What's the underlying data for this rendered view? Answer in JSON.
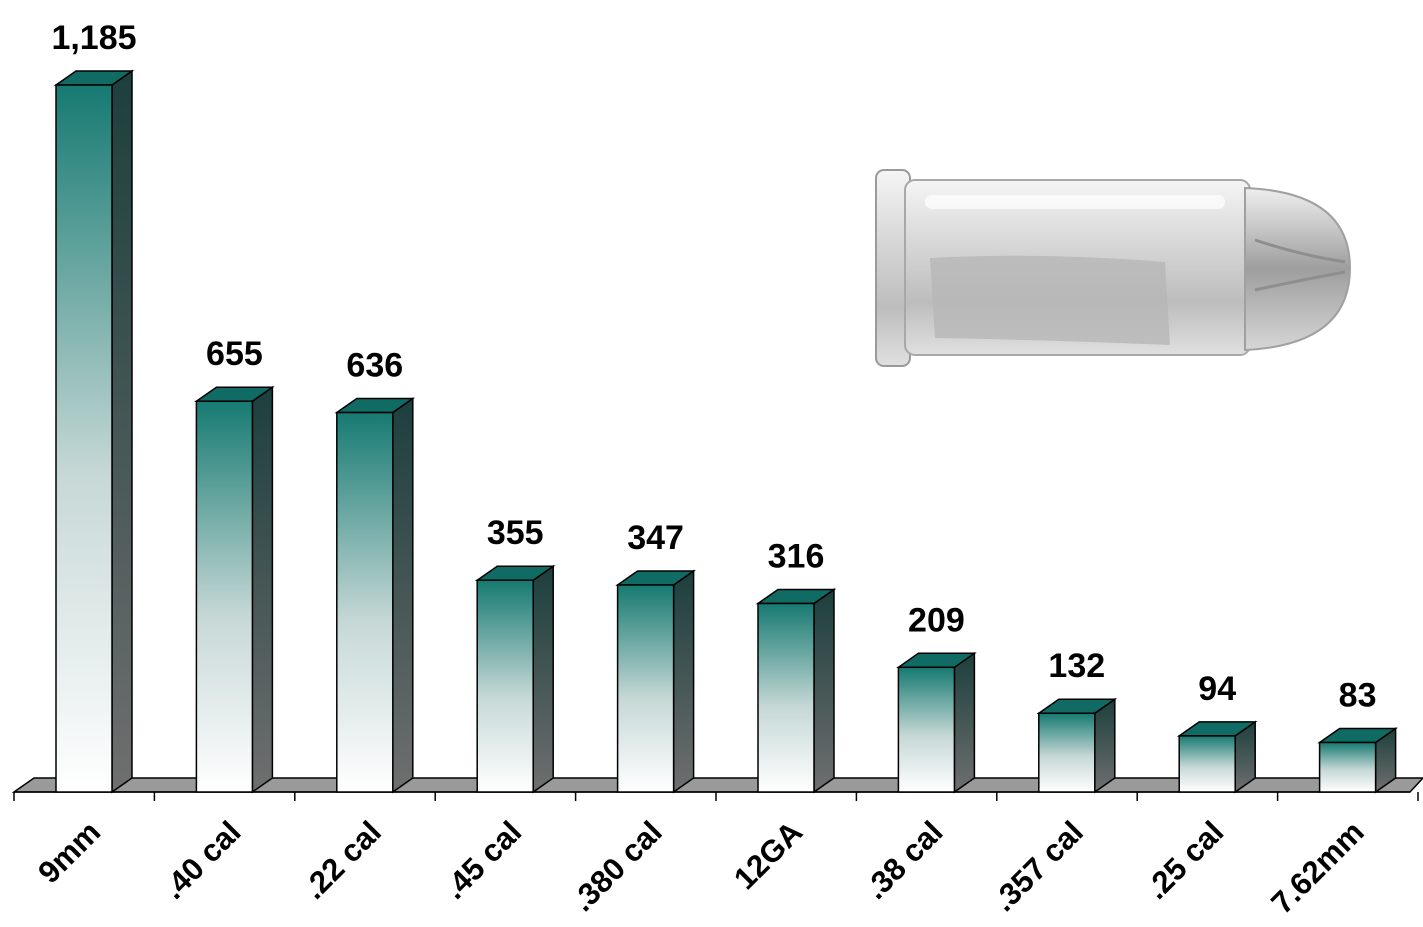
{
  "chart_data": {
    "type": "bar",
    "categories": [
      "9mm",
      ".40 cal",
      ".22 cal",
      ".45 cal",
      ".380 cal",
      "12GA",
      ".38 cal",
      ".357 cal",
      ".25 cal",
      "7.62mm"
    ],
    "values": [
      1185,
      655,
      636,
      355,
      347,
      316,
      209,
      132,
      94,
      83
    ],
    "value_labels": [
      "1,185",
      "655",
      "636",
      "355",
      "347",
      "316",
      "209",
      "132",
      "94",
      "83"
    ],
    "title": "",
    "xlabel": "",
    "ylabel": "",
    "ylim": [
      0,
      1185
    ],
    "grid": false,
    "legend": "none",
    "style": "3d-columns",
    "bar_color_top": "#167a72",
    "bar_color_bottom": "#ffffff",
    "floor_color": "#9a9a9a"
  },
  "image": {
    "icon": "bullet-cartridge-icon"
  }
}
